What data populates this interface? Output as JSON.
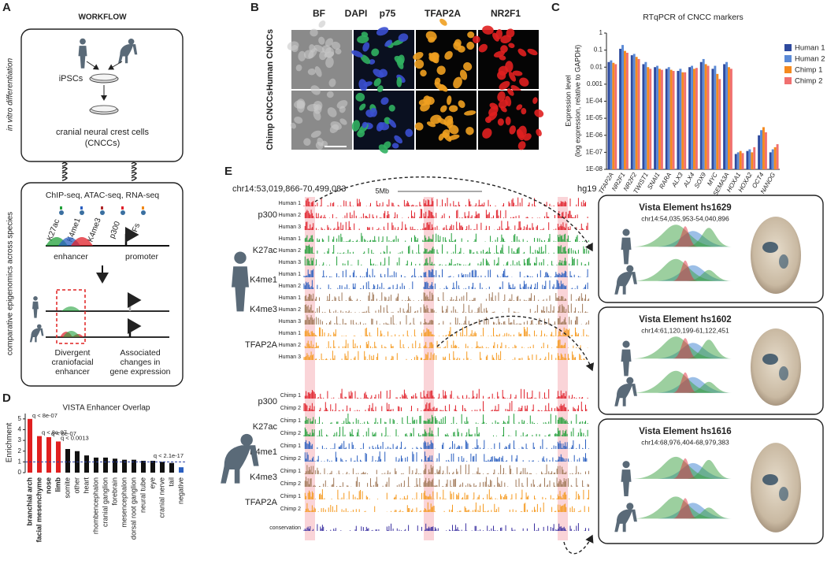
{
  "panel_letters": [
    "A",
    "B",
    "C",
    "D",
    "E"
  ],
  "panel_a": {
    "title": "WORKFLOW",
    "side_top": "in vitro differentiation",
    "side_bottom": "comparative epigenomics across species",
    "ipscs": "iPSCs",
    "cncc": [
      "cranial neural crest cells",
      "(CNCCs)"
    ],
    "assays": "ChIP-seq, ATAC-seq, RNA-seq",
    "marks": [
      {
        "text": "K27ac",
        "color": "#22a03a"
      },
      {
        "text": "K4me1",
        "color": "#2a5fc0"
      },
      {
        "text": "K4me3",
        "color": "#b0282a"
      },
      {
        "text": "p300",
        "color": "#e0202a"
      },
      {
        "text": "TFs",
        "color": "#f08a1a"
      }
    ],
    "enhancer": "enhancer",
    "promoter": "promoter",
    "left_caption": [
      "Divergent",
      "craniofacial",
      "enhancer"
    ],
    "right_caption": [
      "Associated",
      "changes in",
      "gene expression"
    ]
  },
  "panel_b": {
    "columns": [
      "BF",
      "DAPI",
      "p75",
      "TFAP2A",
      "NR2F1"
    ],
    "column_colors": [
      "#222222",
      "#3a3fb0",
      "#2aa040",
      "#f0a020",
      "#e02020"
    ],
    "rows": [
      "Human CNCCs",
      "Chimp CNCCs"
    ]
  },
  "chart_data": [
    {
      "type": "bar",
      "title": "RTqPCR of CNCC markers",
      "y_label": [
        "Expression level",
        "(log expression, relative to GAPDH)"
      ],
      "log_scale": true,
      "categories": [
        "TFAP2A",
        "NR2F1",
        "NR2F2",
        "TWIST1",
        "SNAI1",
        "RARA",
        "ALX3",
        "ALX4",
        "SOX9",
        "MYC",
        "SEMA3A",
        "HOXA1",
        "HOXA2",
        "OCT4",
        "NANOG"
      ],
      "series": [
        {
          "name": "Human 1",
          "color": "#2e4a9e",
          "values": [
            0.02,
            0.12,
            0.05,
            0.015,
            0.01,
            0.008,
            0.006,
            0.01,
            0.02,
            0.008,
            0.015,
            8e-08,
            1.2e-07,
            1e-06,
            1e-07
          ]
        },
        {
          "name": "Human 2",
          "color": "#5b8ad6",
          "values": [
            0.025,
            0.2,
            0.06,
            0.02,
            0.012,
            0.01,
            0.008,
            0.012,
            0.03,
            0.012,
            0.02,
            1e-07,
            1.5e-07,
            2e-06,
            1.5e-07
          ]
        },
        {
          "name": "Chimp 1",
          "color": "#f58a1f",
          "values": [
            0.018,
            0.09,
            0.04,
            0.01,
            0.008,
            0.007,
            0.005,
            0.008,
            0.015,
            0.004,
            0.01,
            1.2e-07,
            1e-07,
            3e-06,
            2e-07
          ]
        },
        {
          "name": "Chimp 2",
          "color": "#f07070",
          "values": [
            0.015,
            0.07,
            0.03,
            0.008,
            0.007,
            0.006,
            0.005,
            0.009,
            0.012,
            0.002,
            0.008,
            9e-08,
            2e-07,
            1.5e-06,
            3e-07
          ]
        }
      ],
      "ylim": [
        1e-08,
        1
      ],
      "yticks": [
        {
          "value": 1e-08,
          "label": "1E-08"
        },
        {
          "value": 1e-07,
          "label": "1E-07"
        },
        {
          "value": 1e-06,
          "label": "1E-06"
        },
        {
          "value": 1e-05,
          "label": "1E-05"
        },
        {
          "value": 0.0001,
          "label": "1E-04"
        },
        0.001,
        0.01,
        0.1,
        1
      ]
    },
    {
      "type": "bar",
      "title": "VISTA Enhancer Overlap",
      "y_label": "Enrichment",
      "categories": [
        "branchial arch",
        "facial mesenchyme",
        "nose",
        "limb",
        "somite",
        "other",
        "heart",
        "rhombencephalon",
        "cranial ganglion",
        "forebrain",
        "mesencephalon",
        "dorsal root ganglion",
        "neural tube",
        "eye",
        "cranial nerve",
        "tail",
        "negative"
      ],
      "values": [
        5.0,
        3.4,
        3.3,
        2.9,
        2.2,
        2.0,
        1.6,
        1.4,
        1.4,
        1.3,
        1.2,
        1.2,
        1.1,
        1.1,
        1.0,
        0.9,
        0.5
      ],
      "colors": [
        "#e02020",
        "#e02020",
        "#e02020",
        "#e02020",
        "#111111",
        "#111111",
        "#111111",
        "#111111",
        "#111111",
        "#111111",
        "#111111",
        "#111111",
        "#111111",
        "#111111",
        "#111111",
        "#111111",
        "#2a5fc0"
      ],
      "ylim": [
        0,
        5.5
      ],
      "yticks": [
        0,
        1,
        2,
        3,
        4,
        5
      ],
      "reference_line": 1,
      "annotations": [
        {
          "text": "q < 8e-07",
          "bar": 0
        },
        {
          "text": "q < 8e-07",
          "bar": 1
        },
        {
          "text": "q < 8e-07",
          "bar": 2
        },
        {
          "text": "q < 0.0013",
          "bar": 3
        },
        {
          "text": "q < 2.1e-17",
          "bar": 16
        }
      ]
    }
  ],
  "panel_e": {
    "region": "chr14:53,019,866-70,499,083",
    "scale": "5Mb",
    "assembly": "hg19",
    "human": [
      {
        "mark": "p300",
        "color": "#e0202a",
        "tracks": [
          "Human 1",
          "Human 2",
          "Human 3"
        ]
      },
      {
        "mark": "K27ac",
        "color": "#22a03a",
        "tracks": [
          "Human 1",
          "Human 2",
          "Human 3"
        ]
      },
      {
        "mark": "K4me1",
        "color": "#2a5fc0",
        "tracks": [
          "Human 1",
          "Human 2"
        ]
      },
      {
        "mark": "K4me3",
        "color": "#a07858",
        "tracks": [
          "Human 1",
          "Human 2",
          "Human 3"
        ]
      },
      {
        "mark": "TFAP2A",
        "color": "#f59a20",
        "tracks": [
          "Human 1",
          "Human 2",
          "Human 3"
        ]
      }
    ],
    "chimp": [
      {
        "mark": "p300",
        "color": "#e0202a",
        "tracks": [
          "Chimp 1",
          "Chimp 2"
        ]
      },
      {
        "mark": "K27ac",
        "color": "#22a03a",
        "tracks": [
          "Chimp 1",
          "Chimp 2"
        ]
      },
      {
        "mark": "K4me1",
        "color": "#2a5fc0",
        "tracks": [
          "Chimp 1",
          "Chimp 2"
        ]
      },
      {
        "mark": "K4me3",
        "color": "#a07858",
        "tracks": [
          "Chimp 1",
          "Chimp 2"
        ]
      },
      {
        "mark": "TFAP2A",
        "color": "#f59a20",
        "tracks": [
          "Chimp 1",
          "Chimp 2"
        ]
      }
    ],
    "conservation": "conservation",
    "vista": [
      {
        "title": "Vista Element hs1629",
        "coords": "chr14:54,035,953-54,040,896"
      },
      {
        "title": "Vista Element hs1602",
        "coords": "chr14:61,120,199-61,122,451"
      },
      {
        "title": "Vista Element hs1616",
        "coords": "chr14:68,976,404-68,979,383"
      }
    ]
  }
}
